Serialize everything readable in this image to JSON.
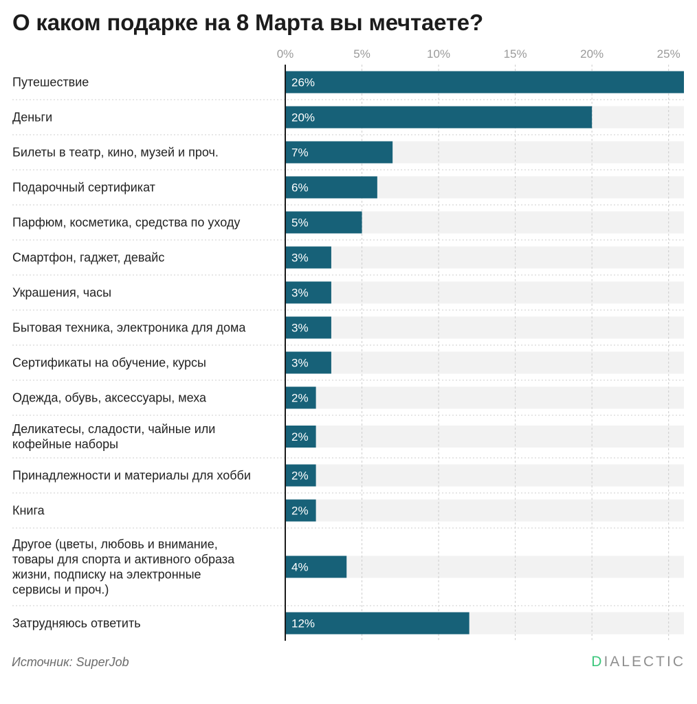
{
  "title": "О каком подарке на 8 Марта вы мечтаете?",
  "source": "Источник: SuperJob",
  "logo": {
    "first_letter": "D",
    "rest": "IALECTIC"
  },
  "colors": {
    "bar": "#176178",
    "track": "#f2f2f2",
    "grid": "#cccccc",
    "logo_accent": "#3cc77c"
  },
  "chart_data": {
    "type": "bar",
    "orientation": "horizontal",
    "title": "О каком подарке на 8 Марта вы мечтаете?",
    "xlabel": "",
    "ylabel": "",
    "xlim": [
      0,
      26
    ],
    "ticks": [
      0,
      5,
      10,
      15,
      20,
      25
    ],
    "tick_labels": [
      "0%",
      "5%",
      "10%",
      "15%",
      "20%",
      "25%"
    ],
    "categories": [
      [
        "Путешествие"
      ],
      [
        "Деньги"
      ],
      [
        "Билеты в театр, кино, музей и проч."
      ],
      [
        "Подарочный сертификат"
      ],
      [
        "Парфюм, косметика, средства по уходу"
      ],
      [
        "Смартфон, гаджет, девайс"
      ],
      [
        "Украшения, часы"
      ],
      [
        "Бытовая техника, электроника для дома"
      ],
      [
        "Сертификаты на обучение, курсы"
      ],
      [
        "Одежда, обувь, аксессуары, меха"
      ],
      [
        "Деликатесы, сладости, чайные или",
        "кофейные наборы"
      ],
      [
        "Принадлежности и материалы для хобби"
      ],
      [
        "Книга"
      ],
      [
        "Другое (цветы, любовь и внимание,",
        "товары для спорта и активного образа",
        "жизни, подписку на электронные",
        "сервисы и проч.)"
      ],
      [
        "Затрудняюсь ответить"
      ]
    ],
    "values": [
      26,
      20,
      7,
      6,
      5,
      3,
      3,
      3,
      3,
      2,
      2,
      2,
      2,
      4,
      12
    ],
    "value_labels": [
      "26%",
      "20%",
      "7%",
      "6%",
      "5%",
      "3%",
      "3%",
      "3%",
      "3%",
      "2%",
      "2%",
      "2%",
      "2%",
      "4%",
      "12%"
    ]
  }
}
